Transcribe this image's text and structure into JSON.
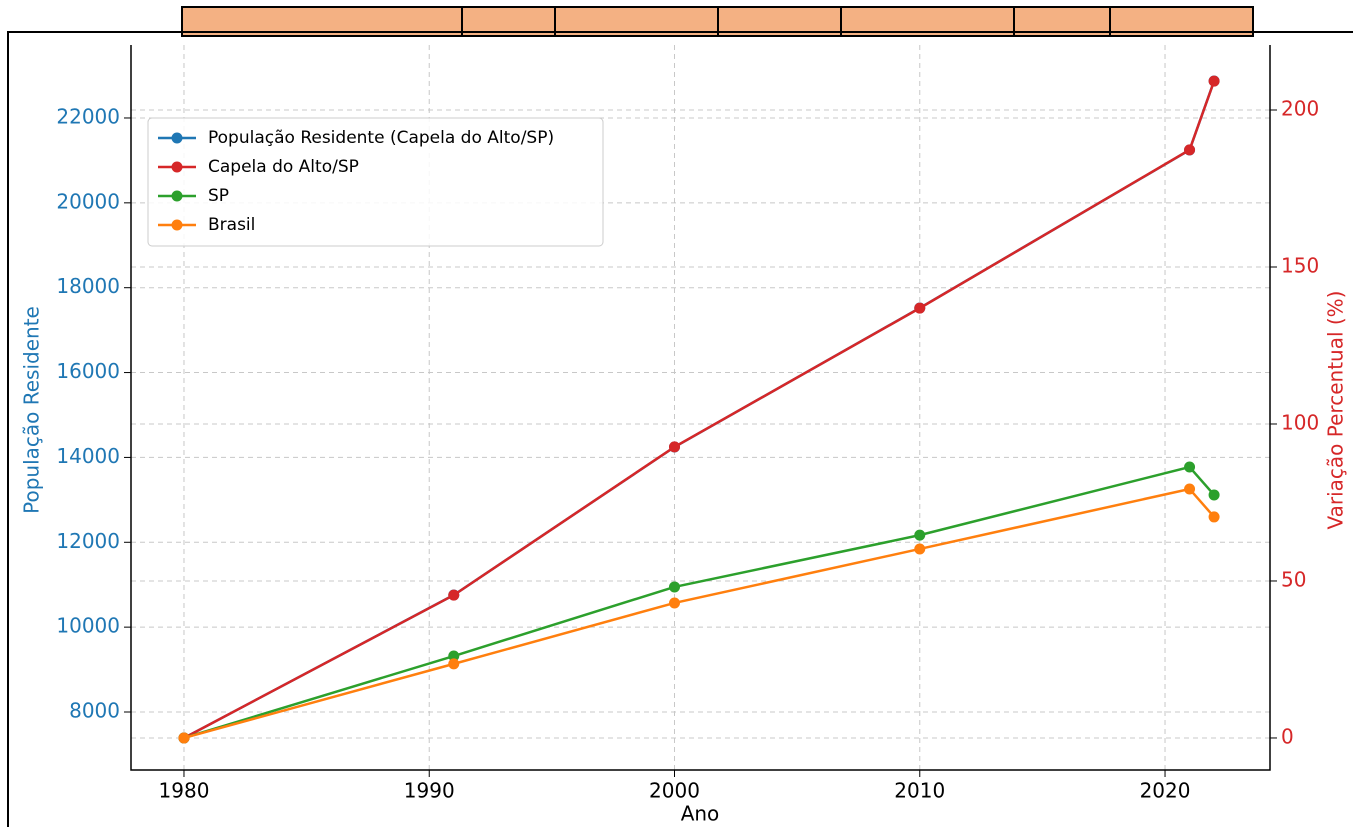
{
  "chart_data": {
    "type": "line",
    "x_label": "Ano",
    "y_label": "População Residente",
    "y2_label": "Variação Percentual (%)",
    "x": [
      1980,
      1991,
      2000,
      2010,
      2021,
      2022
    ],
    "xlim": [
      1977.84,
      2024.28
    ],
    "xticks": [
      1980,
      1990,
      2000,
      2010,
      2020
    ],
    "ylim": [
      6633,
      23720
    ],
    "yticks": [
      8000,
      10000,
      12000,
      14000,
      16000,
      18000,
      20000,
      22000
    ],
    "y2lim": [
      -10.2,
      220.7
    ],
    "y2ticks": [
      0,
      50,
      100,
      150,
      200
    ],
    "grid": true,
    "legend": "upper-left",
    "y_color": "#1f77b4",
    "y2_color": "#d62728",
    "series": [
      {
        "name": "População Residente (Capela do Alto/SP)",
        "color": "#1f77b4",
        "axis": "y",
        "values": [
          7387,
          10757,
          14245,
          17522,
          21245,
          22872
        ]
      },
      {
        "name": "Capela do Alto/SP",
        "color": "#d62728",
        "axis": "y2",
        "values": [
          0,
          45.5,
          92.7,
          136.9,
          187.3,
          209.2
        ]
      },
      {
        "name": "SP",
        "color": "#2ca02c",
        "axis": "y2",
        "values": [
          0,
          26.1,
          48.1,
          64.6,
          86.3,
          77.4
        ]
      },
      {
        "name": "Brasil",
        "color": "#ff7f0e",
        "axis": "y2",
        "values": [
          0,
          23.6,
          43.0,
          60.2,
          79.3,
          70.4
        ]
      }
    ]
  }
}
